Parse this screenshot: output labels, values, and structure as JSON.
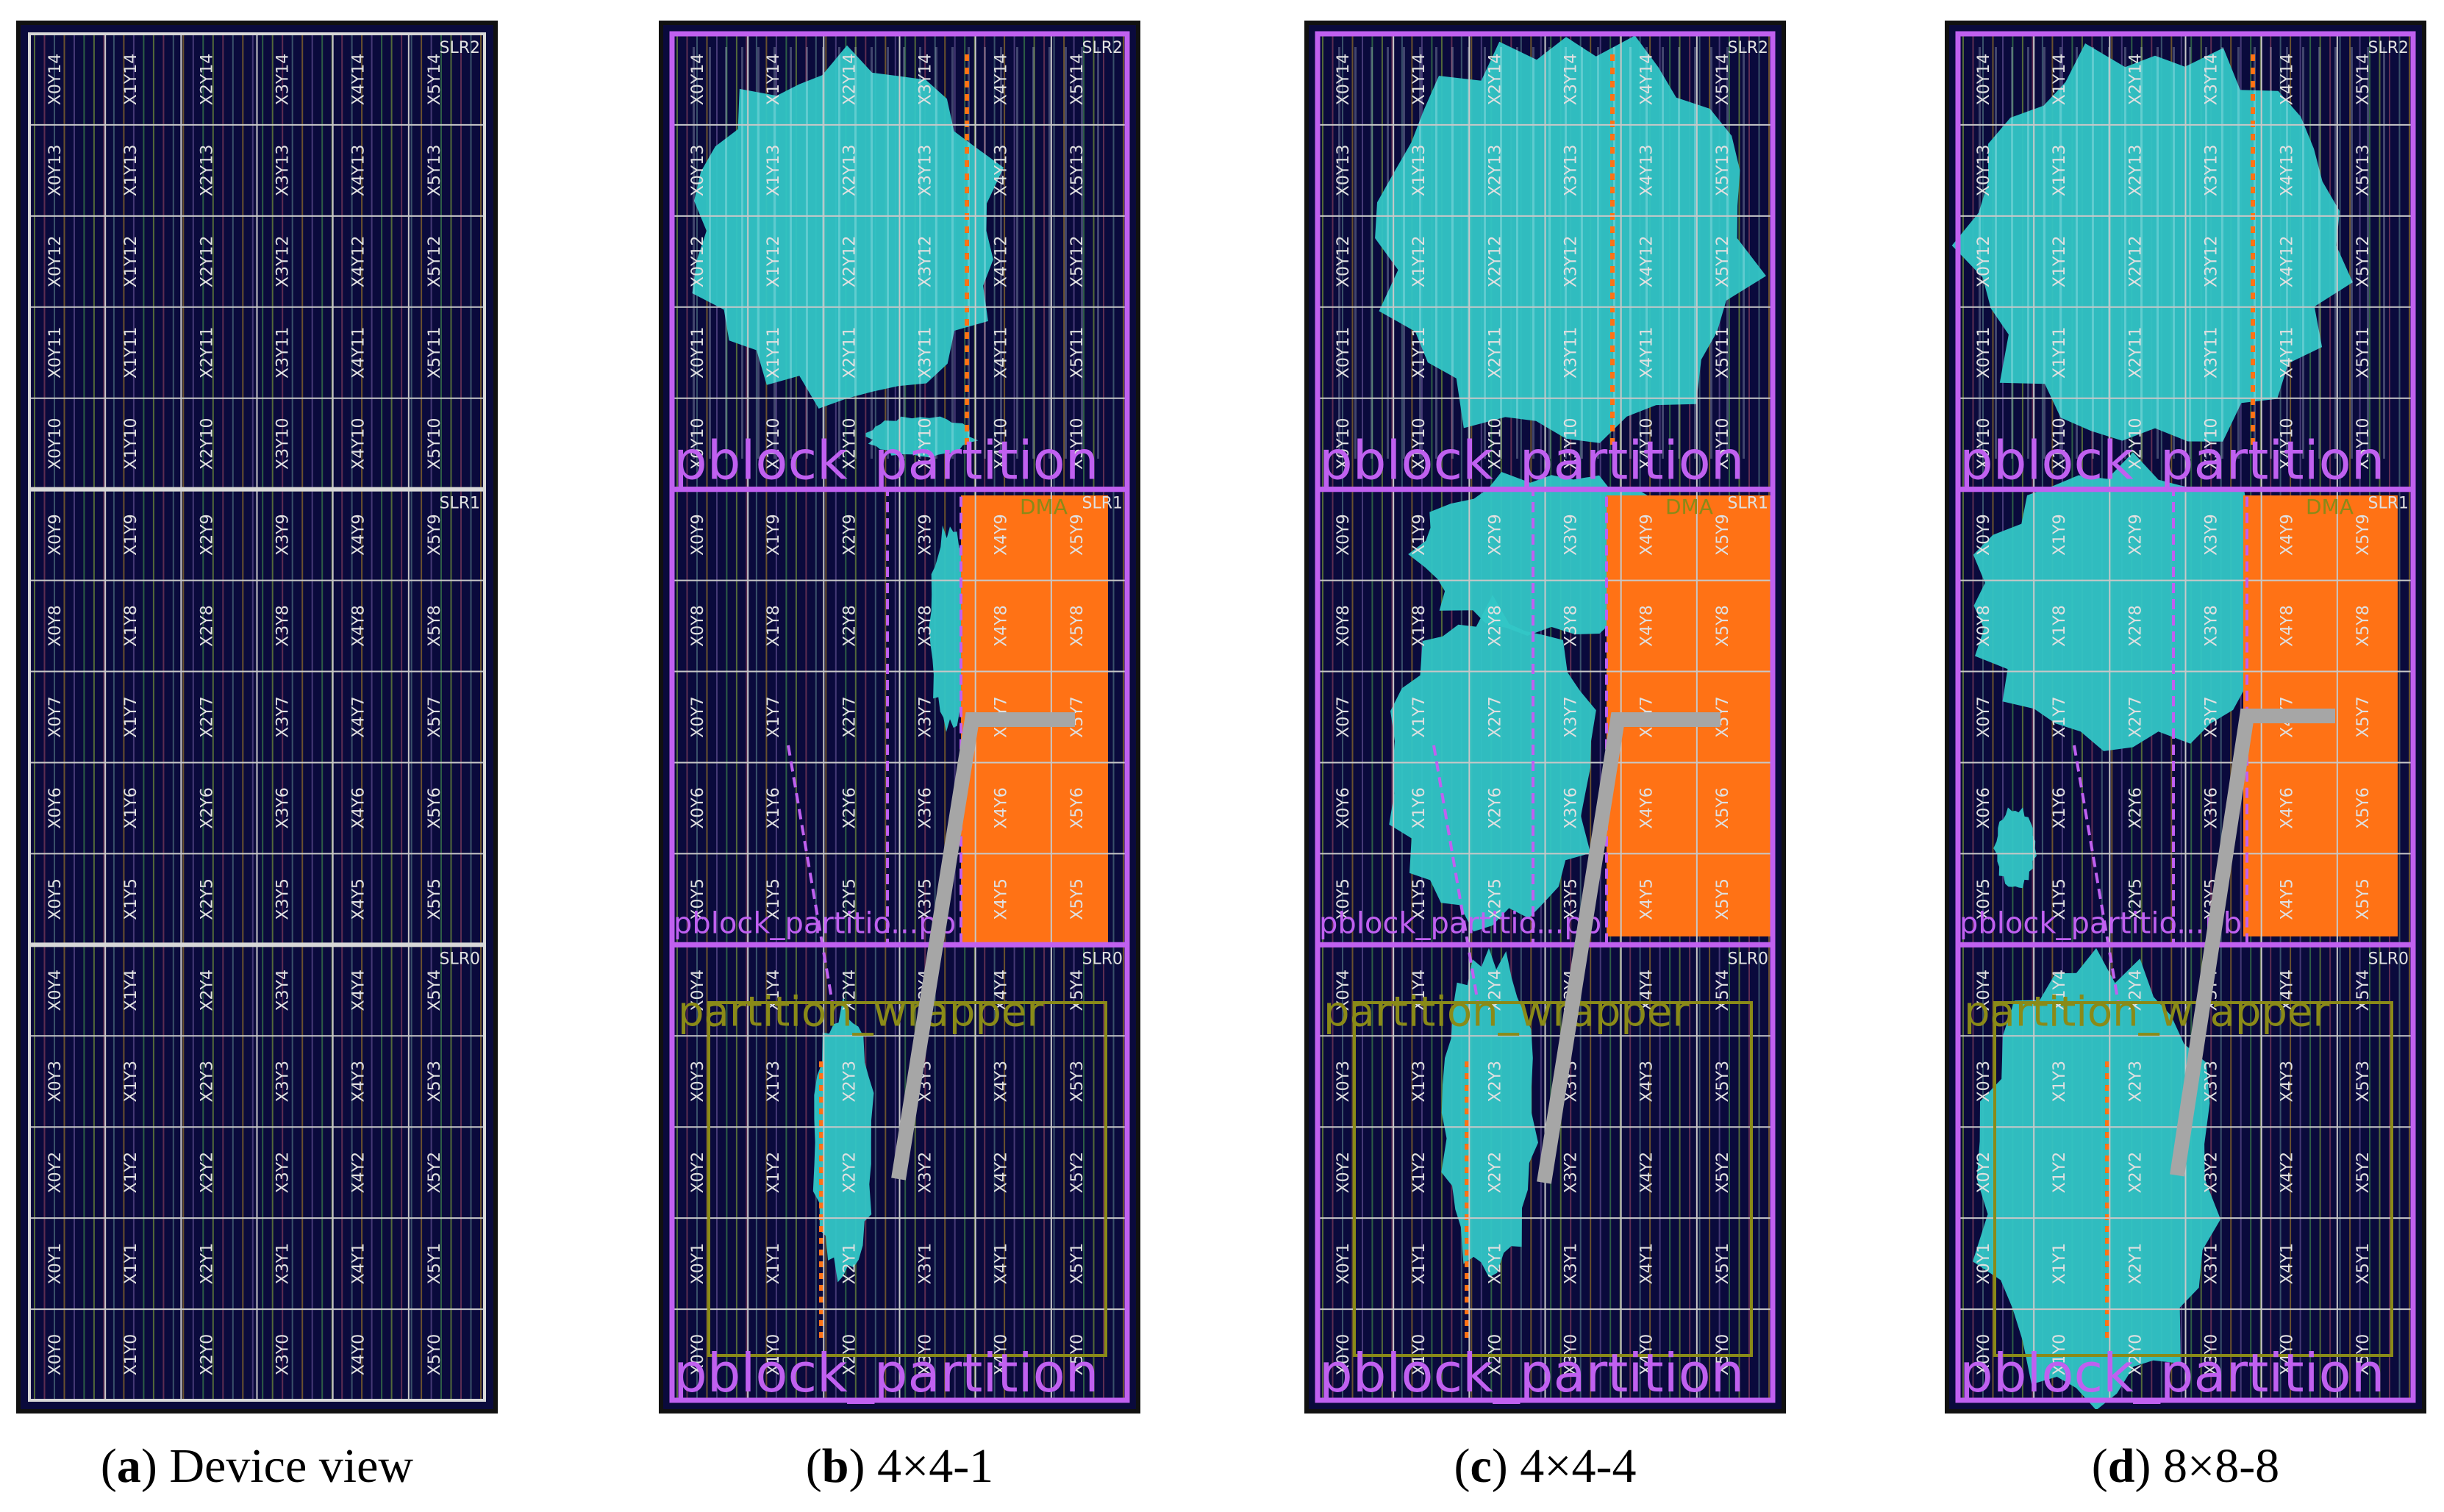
{
  "panels": [
    {
      "id": "a",
      "letter": "a",
      "caption": "Device view",
      "partitioned": false
    },
    {
      "id": "b",
      "letter": "b",
      "caption": "4×4-1",
      "partitioned": true
    },
    {
      "id": "c",
      "letter": "c",
      "caption": "4×4-4",
      "partitioned": true
    },
    {
      "id": "d",
      "letter": "d",
      "caption": "8×8-8",
      "partitioned": true
    }
  ],
  "slr_labels": [
    "SLR2",
    "SLR1",
    "SLR0"
  ],
  "clock_region_cols": [
    "X0",
    "X1",
    "X2",
    "X3",
    "X4",
    "X5"
  ],
  "clock_region_rows": [
    "Y14",
    "Y13",
    "Y12",
    "Y11",
    "Y10",
    "Y9",
    "Y8",
    "Y7",
    "Y6",
    "Y5",
    "Y4",
    "Y3",
    "Y2",
    "Y1",
    "Y0"
  ],
  "pblock_label": "pblock_partition",
  "pblock_label_short": "pblock_partitio...pb",
  "wrapper_label": "partition_wrapper",
  "dma_label": "DMA",
  "colors": {
    "background": "#0a0a3c",
    "grid": "#c8c8c8",
    "slr_border": "#d8d8d8",
    "pblock": "#c060f0",
    "cyan": "#33c6c6",
    "orange": "#ff7215",
    "wrapper": "#8a8a18",
    "route": "#a6a6a6"
  }
}
